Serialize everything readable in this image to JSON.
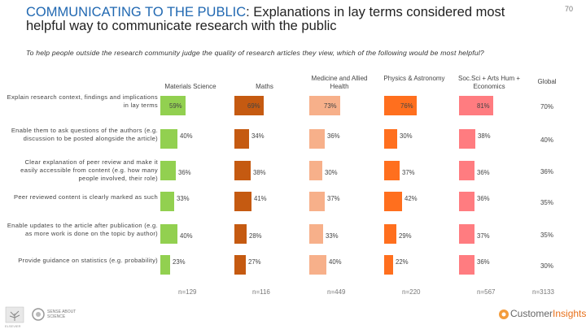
{
  "header": {
    "title_highlight": "COMMUNICATING TO THE PUBLIC",
    "title_rest": ": Explanations in lay terms considered most helpful way to communicate research with the public",
    "page_number": "70",
    "question": "To help people outside the research community judge the quality of research articles they view, which of the following would be most helpful?"
  },
  "chart_data": {
    "type": "bar",
    "title": "Explanations in lay terms considered most helpful way to communicate research with the public",
    "categories": [
      "Explain research context, findings and implications in lay terms",
      "Enable them to ask questions of the authors (e.g. discussion to be posted alongside the article)",
      "Clear explanation of peer review and make it easily accessible from content (e.g. how many people involved, their role)",
      "Peer reviewed content is clearly marked as such",
      "Enable updates to the article after publication (e.g. as more work is done on the topic by author)",
      "Provide guidance on statistics (e.g. probability)"
    ],
    "series": [
      {
        "name": "Materials Science",
        "n": "n=129",
        "color": "#92d050",
        "values": [
          59,
          40,
          36,
          33,
          40,
          23
        ]
      },
      {
        "name": "Maths",
        "n": "n=116",
        "color": "#c55a11",
        "values": [
          69,
          34,
          38,
          41,
          28,
          27
        ]
      },
      {
        "name": "Medicine and Allied Health",
        "n": "n=449",
        "color": "#f7b08a",
        "values": [
          73,
          36,
          30,
          37,
          33,
          40
        ]
      },
      {
        "name": "Physics & Astronomy",
        "n": "n=220",
        "color": "#ff6f1e",
        "values": [
          76,
          30,
          37,
          42,
          29,
          22
        ]
      },
      {
        "name": "Soc.Sci + Arts Hum + Economics",
        "n": "n=567",
        "color": "#ff7c80",
        "values": [
          81,
          38,
          36,
          36,
          37,
          36
        ]
      }
    ],
    "global": {
      "name": "Global",
      "n": "n=3133",
      "values": [
        70,
        40,
        36,
        35,
        35,
        30
      ]
    },
    "value_suffix": "%",
    "xlim": [
      0,
      100
    ]
  },
  "footer": {
    "brand": "Customer",
    "brand_bold": "Insights",
    "logo_text": "SENSE ABOUT SCIENCE",
    "publisher_text": "ELSEVIER"
  }
}
